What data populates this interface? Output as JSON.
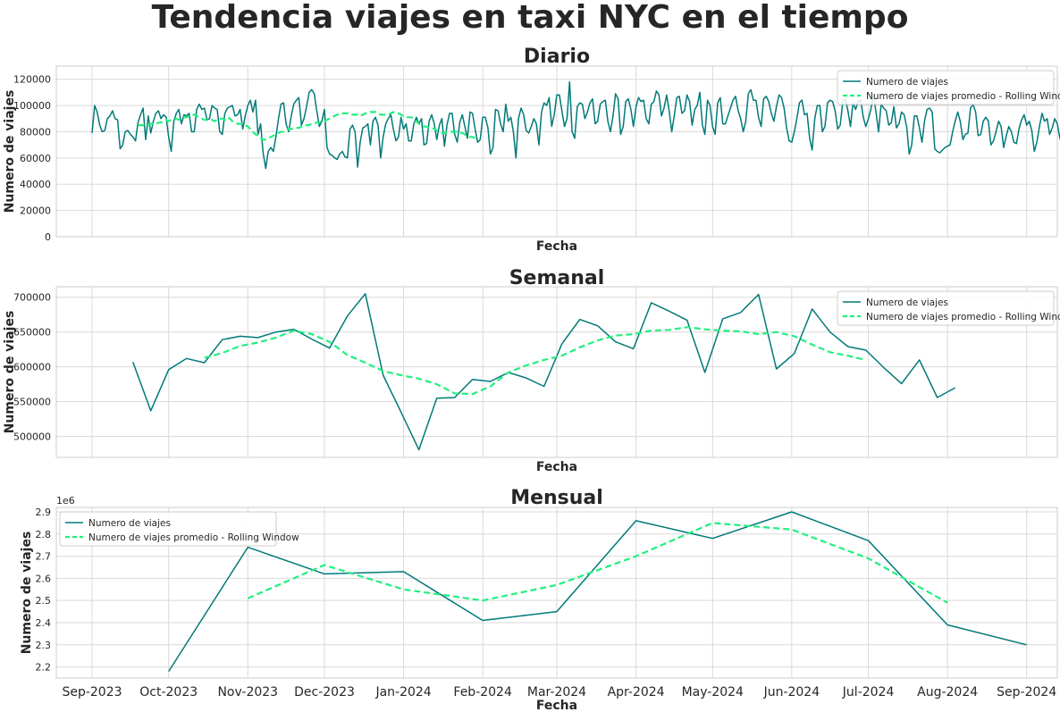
{
  "figure": {
    "suptitle": "Tendencia viajes en taxi NYC en el tiempo"
  },
  "colors": {
    "series": "#007a78",
    "rolling": "#21f07f",
    "grid": "#d9d9d9"
  },
  "legend_labels": [
    "Numero de viajes",
    "Numero de viajes promedio - Rolling Window"
  ],
  "x_ticks": [
    "Sep-2023",
    "Oct-2023",
    "Nov-2023",
    "Dec-2023",
    "Jan-2024",
    "Feb-2024",
    "Mar-2024",
    "Apr-2024",
    "May-2024",
    "Jun-2024",
    "Jul-2024",
    "Aug-2024",
    "Sep-2024"
  ],
  "chart_data": [
    {
      "type": "line",
      "title": "Diario",
      "xlabel": "Fecha",
      "ylabel": "Numero de viajes",
      "ylim": [
        0,
        130000
      ],
      "yticks": [
        "0",
        "20000",
        "40000",
        "60000",
        "80000",
        "100000",
        "120000"
      ],
      "ytick_values": [
        0,
        20000,
        40000,
        60000,
        80000,
        100000,
        120000
      ],
      "xlim": [
        "2023-08-18",
        "2024-09-13"
      ],
      "grid": true,
      "legend_position": "upper right",
      "x_start": "2023-09-01",
      "x_step_days": 1,
      "series": [
        {
          "name": "Numero de viajes",
          "values": [
            79000,
            100000,
            95000,
            85000,
            80000,
            81000,
            90000,
            92000,
            96000,
            90000,
            89000,
            67000,
            70000,
            80000,
            81000,
            78000,
            76000,
            73000,
            87000,
            93000,
            98000,
            74000,
            92000,
            79000,
            88000,
            94000,
            96000,
            90000,
            93000,
            91000,
            76000,
            65000,
            88000,
            94000,
            97000,
            86000,
            93000,
            92000,
            94000,
            80000,
            80000,
            97000,
            101000,
            97000,
            98000,
            89000,
            90000,
            100000,
            98000,
            97000,
            80000,
            78000,
            94000,
            98000,
            99000,
            100000,
            92000,
            93000,
            97000,
            82000,
            92000,
            100000,
            104000,
            95000,
            104000,
            78000,
            86000,
            64000,
            52000,
            65000,
            68000,
            65000,
            76000,
            90000,
            101000,
            102000,
            86000,
            80000,
            92000,
            101000,
            104000,
            106000,
            85000,
            90000,
            99000,
            110000,
            112000,
            109000,
            96000,
            84000,
            88000,
            97000,
            68000,
            63000,
            62000,
            60000,
            59000,
            63000,
            65000,
            61000,
            60000,
            82000,
            85000,
            80000,
            53000,
            72000,
            83000,
            84000,
            86000,
            70000,
            88000,
            91000,
            85000,
            60000,
            76000,
            86000,
            90000,
            93000,
            82000,
            73000,
            76000,
            91000,
            82000,
            86000,
            73000,
            73000,
            86000,
            91000,
            86000,
            90000,
            70000,
            71000,
            88000,
            93000,
            86000,
            74000,
            85000,
            90000,
            69000,
            85000,
            94000,
            94000,
            78000,
            72000,
            87000,
            93000,
            84000,
            75000,
            95000,
            94000,
            82000,
            72000,
            74000,
            91000,
            91000,
            83000,
            63000,
            68000,
            97000,
            96000,
            86000,
            80000,
            101000,
            88000,
            91000,
            80000,
            60000,
            90000,
            98000,
            93000,
            81000,
            79000,
            84000,
            90000,
            86000,
            70000,
            95000,
            102000,
            100000,
            106000,
            84000,
            93000,
            108000,
            108000,
            96000,
            84000,
            90000,
            118000,
            80000,
            75000,
            99000,
            102000,
            101000,
            90000,
            95000,
            102000,
            105000,
            86000,
            88000,
            101000,
            103000,
            104000,
            88000,
            80000,
            92000,
            109000,
            105000,
            78000,
            84000,
            103000,
            105000,
            97000,
            84000,
            99000,
            106000,
            103000,
            104000,
            90000,
            86000,
            101000,
            103000,
            111000,
            108000,
            92000,
            98000,
            108000,
            96000,
            80000,
            92000,
            106000,
            107000,
            94000,
            96000,
            108000,
            103000,
            85000,
            97000,
            100000,
            110000,
            85000,
            78000,
            104000,
            100000,
            84000,
            78000,
            102000,
            106000,
            86000,
            86000,
            92000,
            98000,
            104000,
            107000,
            96000,
            90000,
            80000,
            88000,
            109000,
            112000,
            104000,
            104000,
            91000,
            84000,
            105000,
            107000,
            103000,
            94000,
            88000,
            99000,
            108000,
            106000,
            98000,
            83000,
            73000,
            72000,
            80000,
            90000,
            102000,
            104000,
            93000,
            94000,
            75000,
            66000,
            90000,
            100000,
            100000,
            80000,
            84000,
            102000,
            104000,
            103000,
            96000,
            82000,
            85000,
            103000,
            105000,
            96000,
            84000,
            102000,
            97000,
            103000,
            104000,
            91000,
            84000,
            90000,
            97000,
            108000,
            95000,
            80000,
            101000,
            98000,
            96000,
            85000,
            87000,
            99000,
            83000,
            86000,
            95000,
            93000,
            84000,
            63000,
            70000,
            92000,
            92000,
            83000,
            72000,
            88000,
            97000,
            98000,
            95000,
            67000,
            65000,
            64000,
            66000,
            68000,
            69000,
            70000,
            80000,
            88000,
            95000,
            88000,
            74000,
            78000,
            79000,
            98000,
            101000,
            95000,
            77000,
            78000,
            88000,
            91000,
            88000,
            70000,
            73000,
            80000,
            88000,
            84000,
            68000,
            77000,
            84000,
            80000,
            72000,
            71000,
            82000,
            89000,
            93000,
            85000,
            88000,
            81000,
            65000,
            72000,
            84000,
            94000,
            88000,
            90000,
            78000,
            83000,
            90000,
            86000,
            75000,
            70000,
            63000,
            73000,
            79000,
            79000,
            68000,
            70000,
            72000,
            65000,
            63000,
            71000,
            73000,
            74000,
            71000,
            72000,
            70000,
            62000,
            66000,
            73000,
            81000,
            78000,
            71000,
            68000
          ]
        },
        {
          "name": "Numero de viajes promedio - Rolling Window",
          "start_index": 18,
          "values": [
            85000,
            85000,
            85000,
            84000,
            85000,
            86000,
            86000,
            86000,
            87000,
            87000,
            88000,
            89000,
            88000,
            89000,
            89000,
            90000,
            89000,
            90000,
            91000,
            91000,
            92000,
            93000,
            93000,
            92000,
            91000,
            90000,
            89000,
            89000,
            89000,
            89000,
            88000,
            89000,
            90000,
            90000,
            89000,
            91000,
            90000,
            88000,
            87000,
            86000,
            86000,
            86000,
            85000,
            84000,
            82000,
            80000,
            78000,
            77000,
            75000,
            74000,
            74000,
            75000,
            76000,
            77000,
            78000,
            79000,
            80000,
            80000,
            81000,
            82000,
            82000,
            83000,
            83000,
            83000,
            84000,
            84000,
            85000,
            85000,
            86000,
            86000,
            87000,
            87000,
            88000,
            88000,
            89000,
            90000,
            91000,
            92000,
            93000,
            94000,
            94000,
            94000,
            94000,
            94000,
            93000,
            93000,
            93000,
            92000,
            93000,
            94000,
            94000,
            95000,
            95000,
            95000,
            94000,
            93000,
            93000,
            93000,
            93000,
            94000,
            95000,
            94000,
            94000,
            93000,
            92000,
            91000,
            91000,
            91000,
            90000,
            88000,
            86000,
            85000,
            84000,
            84000,
            83000,
            83000,
            82000,
            81000,
            80000,
            79000,
            79000,
            80000,
            80000,
            80000,
            80000,
            80000,
            79000,
            79000,
            78000,
            77000,
            76000,
            76000,
            75000
          ]
        }
      ]
    },
    {
      "type": "line",
      "title": "Semanal",
      "xlabel": "Fecha",
      "ylabel": "Numero de viajes",
      "ylim": [
        470000,
        715000
      ],
      "yticks": [
        "500000",
        "550000",
        "600000",
        "650000",
        "700000"
      ],
      "ytick_values": [
        500000,
        550000,
        600000,
        650000,
        700000
      ],
      "xlim": [
        "2023-08-18",
        "2024-09-13"
      ],
      "grid": true,
      "legend_position": "upper right",
      "x_start": "2023-09-17",
      "x_step_days": 7,
      "series": [
        {
          "name": "Numero de viajes",
          "values": [
            607000,
            537000,
            596000,
            612000,
            606000,
            639000,
            644000,
            642000,
            650000,
            654000,
            640000,
            627000,
            673000,
            705000,
            588000,
            535000,
            481000,
            555000,
            556000,
            582000,
            579000,
            592000,
            584000,
            572000,
            633000,
            668000,
            659000,
            636000,
            626000,
            692000,
            680000,
            667000,
            592000,
            669000,
            678000,
            704000,
            597000,
            619000,
            683000,
            650000,
            629000,
            624000,
            599000,
            576000,
            610000,
            556000,
            570000
          ]
        },
        {
          "name": "Numero de viajes promedio - Rolling Window",
          "start_index": 4,
          "values": [
            613000,
            620000,
            630000,
            635000,
            642000,
            652000,
            647000,
            636000,
            617000,
            606000,
            594000,
            588000,
            583000,
            575000,
            562000,
            561000,
            572000,
            592000,
            602000,
            610000,
            616000,
            628000,
            638000,
            645000,
            647000,
            652000,
            653000,
            657000,
            654000,
            652000,
            651000,
            647000,
            650000,
            644000,
            632000,
            621000,
            616000,
            610000
          ]
        }
      ]
    },
    {
      "type": "line",
      "title": "Mensual",
      "xlabel": "Fecha",
      "ylabel": "Numero de viajes",
      "offset_label": "1e6",
      "ylim": [
        2.15,
        2.92
      ],
      "yticks": [
        "2.2",
        "2.3",
        "2.4",
        "2.5",
        "2.6",
        "2.7",
        "2.8",
        "2.9"
      ],
      "ytick_values": [
        2.2,
        2.3,
        2.4,
        2.5,
        2.6,
        2.7,
        2.8,
        2.9
      ],
      "xlim": [
        "2023-08-18",
        "2024-09-13"
      ],
      "grid": true,
      "legend_position": "upper left",
      "series": [
        {
          "name": "Numero de viajes",
          "x": [
            "2023-10-01",
            "2023-11-01",
            "2023-12-01",
            "2024-01-01",
            "2024-02-01",
            "2024-03-01",
            "2024-04-01",
            "2024-05-01",
            "2024-06-01",
            "2024-07-01",
            "2024-08-01",
            "2024-09-01"
          ],
          "values": [
            2.18,
            2.74,
            2.62,
            2.63,
            2.41,
            2.45,
            2.86,
            2.78,
            2.9,
            2.77,
            2.39,
            2.3
          ]
        },
        {
          "name": "Numero de viajes promedio - Rolling Window",
          "x": [
            "2023-11-01",
            "2023-12-01",
            "2024-01-01",
            "2024-02-01",
            "2024-03-01",
            "2024-04-01",
            "2024-05-01",
            "2024-06-01",
            "2024-07-01",
            "2024-08-01"
          ],
          "values": [
            2.51,
            2.66,
            2.55,
            2.5,
            2.57,
            2.7,
            2.85,
            2.82,
            2.69,
            2.49
          ]
        }
      ]
    }
  ]
}
